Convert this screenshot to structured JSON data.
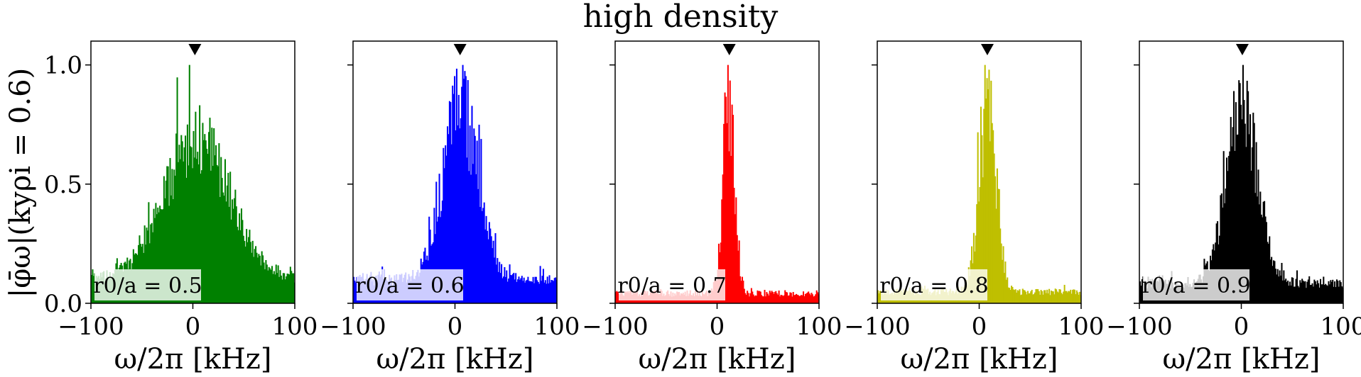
{
  "figure": {
    "title": "high density",
    "ylabel": "|φ̄ω|(kyρi = 0.6)",
    "xlabel": "ω/2π [kHz]"
  },
  "chart_data": [
    {
      "type": "bar",
      "color": "#008000",
      "label": "r0/a = 0.5",
      "xlim": [
        -100,
        100
      ],
      "ylim": [
        0,
        1.1
      ],
      "xticks": [
        "−100",
        "0",
        "100"
      ],
      "yticks": [
        "0.0",
        "0.5",
        "1.0"
      ],
      "marker_x": 2,
      "profile": {
        "center": 4,
        "width": 45,
        "base": 0.15,
        "peak": 0.85,
        "noise": 0.35,
        "seed": 11
      }
    },
    {
      "type": "bar",
      "color": "#0000ff",
      "label": "r0/a = 0.6",
      "xlim": [
        -100,
        100
      ],
      "ylim": [
        0,
        1.1
      ],
      "xticks": [
        "−100",
        "0",
        "100"
      ],
      "yticks": [
        "0.0",
        "0.5",
        "1.0"
      ],
      "marker_x": 5,
      "profile": {
        "center": 5,
        "width": 24,
        "base": 0.12,
        "peak": 0.88,
        "noise": 0.4,
        "seed": 23
      }
    },
    {
      "type": "bar",
      "color": "#ff0000",
      "label": "r0/a = 0.7",
      "xlim": [
        -100,
        100
      ],
      "ylim": [
        0,
        1.1
      ],
      "xticks": [
        "−100",
        "0",
        "100"
      ],
      "yticks": [
        "0.0",
        "0.5",
        "1.0"
      ],
      "marker_x": 12,
      "profile": {
        "center": 11,
        "width": 8,
        "base": 0.05,
        "peak": 0.95,
        "noise": 0.5,
        "seed": 37
      }
    },
    {
      "type": "bar",
      "color": "#bfbf00",
      "label": "r0/a = 0.8",
      "xlim": [
        -100,
        100
      ],
      "ylim": [
        0,
        1.1
      ],
      "xticks": [
        "−100",
        "0",
        "100"
      ],
      "yticks": [
        "0.0",
        "0.5",
        "1.0"
      ],
      "marker_x": 8,
      "profile": {
        "center": 8,
        "width": 12,
        "base": 0.06,
        "peak": 0.94,
        "noise": 0.45,
        "seed": 51
      }
    },
    {
      "type": "bar",
      "color": "#000000",
      "label": "r0/a = 0.9",
      "xlim": [
        -100,
        100
      ],
      "ylim": [
        0,
        1.1
      ],
      "xticks": [
        "−100",
        "0",
        "100"
      ],
      "yticks": [
        "0.0",
        "0.5",
        "1.0"
      ],
      "marker_x": 1,
      "profile": {
        "center": 1,
        "width": 22,
        "base": 0.1,
        "peak": 0.9,
        "noise": 0.4,
        "seed": 67
      }
    }
  ]
}
